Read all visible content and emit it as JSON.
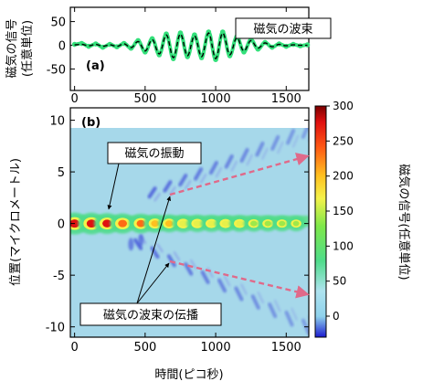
{
  "chart_data": [
    {
      "panel": "(a)",
      "type": "line",
      "ylabel": "磁気の信号\n(任意単位)",
      "annotation": "磁気の波束",
      "xlim": [
        -30,
        1660
      ],
      "ylim": [
        -95,
        80
      ],
      "xticks": [
        0,
        500,
        1000,
        1500
      ],
      "yticks": [
        50,
        0,
        -50
      ],
      "series": [
        {
          "style": "green-dots",
          "color": "#33e07a",
          "x": [
            0,
            50,
            100,
            150,
            200,
            250,
            300,
            350,
            400,
            450,
            500,
            550,
            600,
            650,
            700,
            750,
            800,
            850,
            900,
            950,
            1000,
            1050,
            1100,
            1150,
            1200,
            1250,
            1300,
            1350,
            1400,
            1450,
            1500,
            1550,
            1600,
            1650
          ],
          "y": [
            2,
            4,
            -2,
            3,
            -4,
            2,
            -3,
            4,
            -6,
            10,
            -14,
            14,
            -20,
            24,
            -28,
            26,
            -24,
            22,
            -26,
            28,
            -30,
            28,
            -22,
            18,
            -14,
            12,
            -8,
            6,
            -4,
            3,
            -2,
            2,
            -1,
            1
          ]
        },
        {
          "style": "black-dashed",
          "color": "#000000",
          "x": [
            0,
            50,
            100,
            150,
            200,
            250,
            300,
            350,
            400,
            450,
            500,
            550,
            600,
            650,
            700,
            750,
            800,
            850,
            900,
            950,
            1000,
            1050,
            1100,
            1150,
            1200,
            1250,
            1300,
            1350,
            1400,
            1450,
            1500,
            1550,
            1600,
            1650
          ],
          "y": [
            1,
            2,
            -1,
            2,
            -2,
            1,
            -2,
            3,
            -5,
            8,
            -12,
            12,
            -18,
            22,
            -26,
            24,
            -22,
            20,
            -24,
            26,
            -28,
            26,
            -20,
            16,
            -12,
            10,
            -6,
            5,
            -3,
            2,
            -1,
            1,
            0,
            0
          ]
        }
      ]
    },
    {
      "panel": "(b)",
      "type": "heatmap",
      "xlabel": "時間(ピコ秒)",
      "ylabel": "位置(マイクロメートル)",
      "xlim": [
        -30,
        1660
      ],
      "ylim": [
        -11,
        11.2
      ],
      "xticks": [
        0,
        500,
        1000,
        1500
      ],
      "yticks": [
        10,
        5,
        0,
        -5,
        -10
      ],
      "colorbar": {
        "label": "磁気の信号(任意単位)",
        "range": [
          -30,
          300
        ],
        "ticks": [
          300,
          250,
          200,
          150,
          100,
          50,
          0
        ]
      },
      "central_oscillation": {
        "position": 0,
        "peak_times": [
          0,
          120,
          230,
          340,
          470,
          570,
          670,
          770,
          870,
          970,
          1070,
          1170,
          1270,
          1370,
          1470,
          1570
        ],
        "peak_values": [
          300,
          290,
          260,
          240,
          220,
          170,
          160,
          150,
          140,
          130,
          130,
          120,
          110,
          100,
          90,
          80
        ]
      },
      "wave_packets": {
        "upper": {
          "start_time": 550,
          "start_position": 3,
          "end_time": 1640,
          "end_position": 9
        },
        "lower": {
          "start_time": 450,
          "start_position": -2,
          "end_time": 1640,
          "end_position": -10
        }
      },
      "annotations": {
        "oscillation": "磁気の振動",
        "propagation": "磁気の波束の伝播"
      }
    }
  ]
}
